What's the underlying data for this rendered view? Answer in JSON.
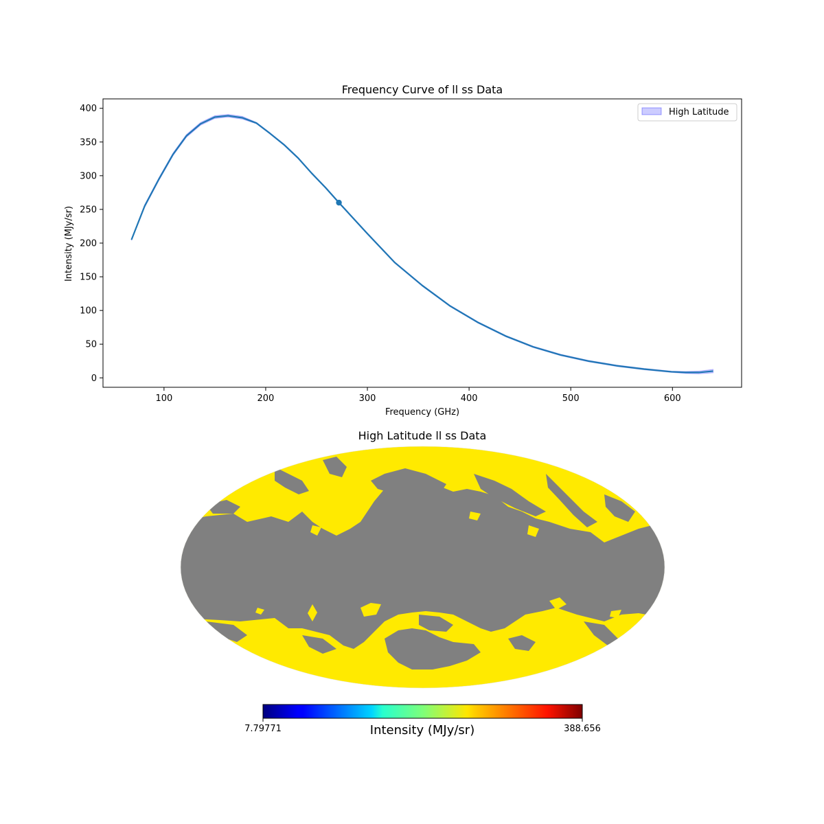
{
  "chart_data": [
    {
      "type": "line",
      "title": "Frequency Curve of ll ss Data",
      "xlabel": "Frequency (GHz)",
      "ylabel": "Intensity (MJy/sr)",
      "xlim": [
        40,
        668
      ],
      "ylim": [
        -14,
        414
      ],
      "xticks": [
        100,
        200,
        300,
        400,
        500,
        600
      ],
      "yticks": [
        0,
        50,
        100,
        150,
        200,
        250,
        300,
        350,
        400
      ],
      "grid": false,
      "legend": {
        "position": "upper right",
        "entries": [
          "High Latitude"
        ]
      },
      "series": [
        {
          "name": "High Latitude",
          "color": "#1f77b4",
          "band_color": "#0000ff",
          "x": [
            68,
            81,
            95,
            109,
            122,
            136,
            150,
            163,
            177,
            191,
            204,
            218,
            232,
            245,
            259,
            272,
            300,
            327,
            354,
            381,
            409,
            436,
            463,
            490,
            517,
            545,
            572,
            599,
            613,
            626,
            640
          ],
          "y": [
            205,
            255,
            295,
            332,
            359,
            377,
            387,
            389,
            386,
            378,
            363,
            346,
            326,
            304,
            282,
            260,
            214,
            171,
            137,
            107,
            82,
            62,
            46,
            34,
            25,
            18,
            13,
            9,
            8,
            8,
            10
          ],
          "band_halfwidth": [
            1,
            2,
            2,
            2,
            2,
            2,
            2,
            2,
            2,
            1,
            1,
            1,
            1,
            1,
            1,
            1,
            1,
            1,
            1,
            1,
            1,
            1,
            1,
            1,
            1,
            1,
            1,
            1,
            1.5,
            2,
            2.5
          ]
        }
      ],
      "marker": {
        "x": 272,
        "y": 260,
        "color": "#1f77b4"
      }
    },
    {
      "type": "heatmap",
      "projection": "mollweide",
      "title": "High Latitude ll ss Data",
      "colormap": "jet",
      "colorbar": {
        "label": "Intensity (MJy/sr)",
        "min": "7.79771",
        "max": "388.656"
      },
      "masked_color": "#808080",
      "data_color": "#ffea00"
    }
  ]
}
